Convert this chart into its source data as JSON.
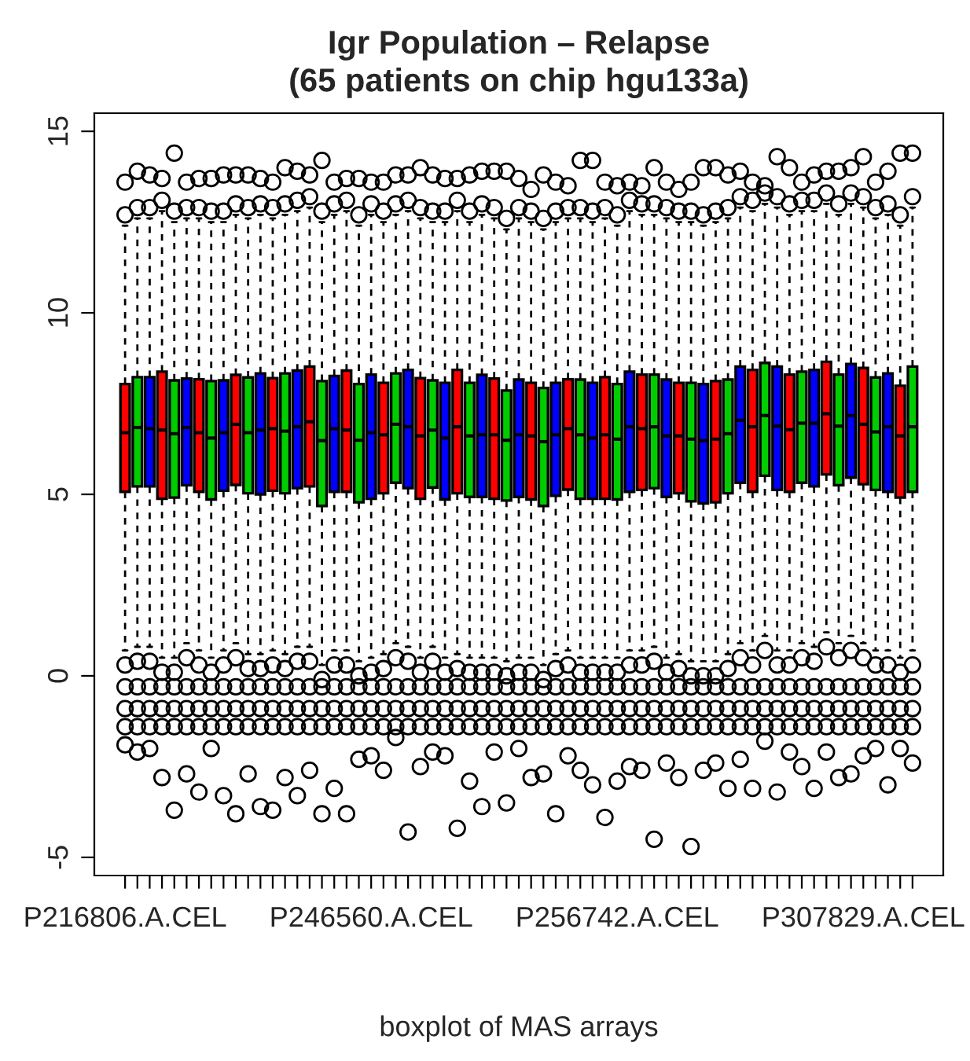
{
  "chart_data": {
    "type": "box",
    "title": "Igr Population – Relapse\n(65 patients on chip hgu133a)",
    "xlabel": "boxplot of MAS arrays",
    "categories": [
      "P216806.A.CEL",
      null,
      null,
      null,
      null,
      null,
      null,
      null,
      null,
      null,
      null,
      null,
      null,
      null,
      null,
      null,
      null,
      null,
      null,
      null,
      "P246560.A.CEL",
      null,
      null,
      null,
      null,
      null,
      null,
      null,
      null,
      null,
      null,
      null,
      null,
      null,
      null,
      null,
      null,
      null,
      null,
      null,
      "P256742.A.CEL",
      null,
      null,
      null,
      null,
      null,
      null,
      null,
      null,
      null,
      null,
      null,
      null,
      null,
      null,
      null,
      null,
      null,
      null,
      null,
      "P307829.A.CEL",
      null,
      null,
      null,
      null
    ],
    "colors": [
      "#ff0000",
      "#00cd00",
      "#0000ff",
      "#ff0000",
      "#00cd00",
      "#0000ff",
      "#ff0000",
      "#00cd00",
      "#0000ff",
      "#ff0000",
      "#00cd00",
      "#0000ff",
      "#ff0000",
      "#00cd00",
      "#0000ff",
      "#ff0000",
      "#00cd00",
      "#0000ff",
      "#ff0000",
      "#00cd00",
      "#0000ff",
      "#ff0000",
      "#00cd00",
      "#0000ff",
      "#ff0000",
      "#00cd00",
      "#0000ff",
      "#ff0000",
      "#00cd00",
      "#0000ff",
      "#ff0000",
      "#00cd00",
      "#0000ff",
      "#ff0000",
      "#00cd00",
      "#0000ff",
      "#ff0000",
      "#00cd00",
      "#0000ff",
      "#ff0000",
      "#00cd00",
      "#0000ff",
      "#ff0000",
      "#00cd00",
      "#0000ff",
      "#ff0000",
      "#00cd00",
      "#0000ff",
      "#ff0000",
      "#00cd00",
      "#0000ff",
      "#ff0000",
      "#00cd00",
      "#0000ff",
      "#ff0000",
      "#00cd00",
      "#0000ff",
      "#ff0000",
      "#00cd00",
      "#0000ff",
      "#ff0000",
      "#00cd00",
      "#0000ff",
      "#ff0000",
      "#00cd00"
    ],
    "boxes": [
      {
        "low": 0.7,
        "q1": 5.07,
        "median": 6.7,
        "q3": 8.04,
        "high": 12.4,
        "outliers": [
          12.7,
          13.6,
          0.3,
          -0.3,
          -0.9,
          -1.4,
          -1.9
        ]
      },
      {
        "low": 0.8,
        "q1": 5.22,
        "median": 6.84,
        "q3": 8.23,
        "high": 12.6,
        "outliers": [
          12.9,
          13.9,
          0.4,
          -0.3,
          -0.9,
          -1.4,
          -2.1
        ]
      },
      {
        "low": 0.8,
        "q1": 5.22,
        "median": 6.81,
        "q3": 8.23,
        "high": 12.6,
        "outliers": [
          12.9,
          13.8,
          0.4,
          -0.3,
          -0.9,
          -1.4,
          -2.0
        ]
      },
      {
        "low": 0.5,
        "q1": 4.88,
        "median": 6.77,
        "q3": 8.38,
        "high": 12.8,
        "outliers": [
          13.1,
          13.7,
          0.1,
          -0.3,
          -0.9,
          -1.4,
          -2.8
        ]
      },
      {
        "low": 0.5,
        "q1": 4.91,
        "median": 6.67,
        "q3": 8.14,
        "high": 12.5,
        "outliers": [
          12.8,
          14.4,
          0.1,
          -0.3,
          -0.9,
          -1.4,
          -3.7
        ]
      },
      {
        "low": 0.9,
        "q1": 5.25,
        "median": 6.84,
        "q3": 8.19,
        "high": 12.6,
        "outliers": [
          12.9,
          13.6,
          0.5,
          -0.3,
          -0.9,
          -1.4,
          -2.7
        ]
      },
      {
        "low": 0.7,
        "q1": 5.07,
        "median": 6.7,
        "q3": 8.17,
        "high": 12.6,
        "outliers": [
          12.9,
          13.7,
          0.3,
          -0.3,
          -0.9,
          -1.4,
          -3.2
        ]
      },
      {
        "low": 0.5,
        "q1": 4.86,
        "median": 6.55,
        "q3": 8.12,
        "high": 12.5,
        "outliers": [
          12.8,
          13.7,
          0.1,
          -0.3,
          -0.9,
          -1.4,
          -2.0
        ]
      },
      {
        "low": 0.7,
        "q1": 5.1,
        "median": 6.7,
        "q3": 8.14,
        "high": 12.5,
        "outliers": [
          12.8,
          13.8,
          0.3,
          -0.3,
          -0.9,
          -1.4,
          -3.3
        ]
      },
      {
        "low": 0.9,
        "q1": 5.26,
        "median": 6.93,
        "q3": 8.29,
        "high": 12.7,
        "outliers": [
          13.0,
          13.8,
          0.5,
          -0.3,
          -0.9,
          -1.4,
          -3.8
        ]
      },
      {
        "low": 0.6,
        "q1": 5.03,
        "median": 6.7,
        "q3": 8.22,
        "high": 12.6,
        "outliers": [
          12.9,
          13.8,
          0.2,
          -0.3,
          -0.9,
          -1.4,
          -2.7
        ]
      },
      {
        "low": 0.6,
        "q1": 5.0,
        "median": 6.77,
        "q3": 8.33,
        "high": 12.7,
        "outliers": [
          13.0,
          13.7,
          0.2,
          -0.3,
          -0.9,
          -1.4,
          -3.6
        ]
      },
      {
        "low": 0.7,
        "q1": 5.1,
        "median": 6.81,
        "q3": 8.2,
        "high": 12.6,
        "outliers": [
          12.9,
          13.6,
          0.3,
          -0.3,
          -0.9,
          -1.4,
          -3.7
        ]
      },
      {
        "low": 0.6,
        "q1": 5.03,
        "median": 6.74,
        "q3": 8.33,
        "high": 12.7,
        "outliers": [
          13.0,
          14.0,
          0.2,
          -0.3,
          -0.9,
          -1.4,
          -2.8
        ]
      },
      {
        "low": 0.8,
        "q1": 5.17,
        "median": 6.86,
        "q3": 8.41,
        "high": 12.8,
        "outliers": [
          13.1,
          13.9,
          0.4,
          -0.3,
          -0.9,
          -1.4,
          -3.3
        ]
      },
      {
        "low": 0.8,
        "q1": 5.22,
        "median": 7.0,
        "q3": 8.52,
        "high": 12.9,
        "outliers": [
          13.2,
          13.8,
          0.4,
          -0.3,
          -0.9,
          -1.4,
          -2.6
        ]
      },
      {
        "low": 0.3,
        "q1": 4.68,
        "median": 6.48,
        "q3": 8.12,
        "high": 12.5,
        "outliers": [
          12.8,
          14.2,
          -0.1,
          -0.3,
          -0.9,
          -1.4,
          -3.8
        ]
      },
      {
        "low": 0.7,
        "q1": 5.07,
        "median": 6.81,
        "q3": 8.26,
        "high": 12.7,
        "outliers": [
          13.0,
          13.6,
          0.3,
          -0.3,
          -0.9,
          -1.4,
          -3.1
        ]
      },
      {
        "low": 0.7,
        "q1": 5.07,
        "median": 6.77,
        "q3": 8.41,
        "high": 12.8,
        "outliers": [
          13.1,
          13.7,
          0.3,
          -0.3,
          -0.9,
          -1.4,
          -3.8
        ]
      },
      {
        "low": 0.4,
        "q1": 4.78,
        "median": 6.49,
        "q3": 8.04,
        "high": 12.4,
        "outliers": [
          12.7,
          13.7,
          0.0,
          -0.3,
          -0.9,
          -1.4,
          -2.3
        ]
      },
      {
        "low": 0.5,
        "q1": 4.88,
        "median": 6.7,
        "q3": 8.3,
        "high": 12.7,
        "outliers": [
          13.0,
          13.6,
          0.1,
          -0.3,
          -0.9,
          -1.4,
          -2.2
        ]
      },
      {
        "low": 0.6,
        "q1": 5.03,
        "median": 6.64,
        "q3": 8.07,
        "high": 12.5,
        "outliers": [
          12.8,
          13.6,
          0.2,
          -0.3,
          -0.9,
          -1.4,
          -2.6
        ]
      },
      {
        "low": 0.9,
        "q1": 5.32,
        "median": 6.93,
        "q3": 8.33,
        "high": 12.7,
        "outliers": [
          13.0,
          13.8,
          0.5,
          -0.3,
          -0.9,
          -1.4,
          -1.7
        ]
      },
      {
        "low": 0.8,
        "q1": 5.17,
        "median": 6.86,
        "q3": 8.43,
        "high": 12.8,
        "outliers": [
          13.1,
          13.8,
          0.4,
          -0.3,
          -0.9,
          -1.4,
          -4.3
        ]
      },
      {
        "low": 0.5,
        "q1": 4.88,
        "median": 6.61,
        "q3": 8.2,
        "high": 12.6,
        "outliers": [
          12.9,
          14.0,
          0.1,
          -0.3,
          -0.9,
          -1.4,
          -2.5
        ]
      },
      {
        "low": 0.8,
        "q1": 5.19,
        "median": 6.77,
        "q3": 8.14,
        "high": 12.5,
        "outliers": [
          12.8,
          13.8,
          0.4,
          -0.3,
          -0.9,
          -1.4,
          -2.1
        ]
      },
      {
        "low": 0.5,
        "q1": 4.86,
        "median": 6.55,
        "q3": 8.07,
        "high": 12.5,
        "outliers": [
          12.8,
          13.7,
          0.1,
          -0.3,
          -0.9,
          -1.4,
          -2.2
        ]
      },
      {
        "low": 0.6,
        "q1": 5.03,
        "median": 6.86,
        "q3": 8.43,
        "high": 12.8,
        "outliers": [
          13.1,
          13.7,
          0.2,
          -0.3,
          -0.9,
          -1.4,
          -4.2
        ]
      },
      {
        "low": 0.5,
        "q1": 4.93,
        "median": 6.61,
        "q3": 8.07,
        "high": 12.5,
        "outliers": [
          12.8,
          13.8,
          0.1,
          -0.3,
          -0.9,
          -1.4,
          -2.9
        ]
      },
      {
        "low": 0.5,
        "q1": 4.93,
        "median": 6.64,
        "q3": 8.29,
        "high": 12.7,
        "outliers": [
          13.0,
          13.9,
          0.1,
          -0.3,
          -0.9,
          -1.4,
          -3.6
        ]
      },
      {
        "low": 0.5,
        "q1": 4.88,
        "median": 6.64,
        "q3": 8.19,
        "high": 12.6,
        "outliers": [
          12.9,
          13.9,
          0.1,
          -0.3,
          -0.9,
          -1.4,
          -2.1
        ]
      },
      {
        "low": 0.4,
        "q1": 4.83,
        "median": 6.49,
        "q3": 7.86,
        "high": 12.3,
        "outliers": [
          12.6,
          13.9,
          0.0,
          -0.3,
          -0.9,
          -1.4,
          -3.5
        ]
      },
      {
        "low": 0.5,
        "q1": 4.93,
        "median": 6.64,
        "q3": 8.16,
        "high": 12.6,
        "outliers": [
          12.9,
          13.7,
          0.1,
          -0.3,
          -0.9,
          -1.4,
          -2.0
        ]
      },
      {
        "low": 0.5,
        "q1": 4.86,
        "median": 6.61,
        "q3": 8.07,
        "high": 12.5,
        "outliers": [
          12.8,
          13.4,
          0.1,
          -0.3,
          -0.9,
          -1.4,
          -2.8
        ]
      },
      {
        "low": 0.3,
        "q1": 4.68,
        "median": 6.45,
        "q3": 7.93,
        "high": 12.3,
        "outliers": [
          12.6,
          13.8,
          -0.1,
          -0.3,
          -0.9,
          -1.4,
          -2.7
        ]
      },
      {
        "low": 0.6,
        "q1": 4.96,
        "median": 6.64,
        "q3": 8.07,
        "high": 12.5,
        "outliers": [
          12.8,
          13.6,
          0.2,
          -0.3,
          -0.9,
          -1.4,
          -3.8
        ]
      },
      {
        "low": 0.7,
        "q1": 5.13,
        "median": 6.81,
        "q3": 8.17,
        "high": 12.6,
        "outliers": [
          12.9,
          13.5,
          0.3,
          -0.3,
          -0.9,
          -1.4,
          -2.2
        ]
      },
      {
        "low": 0.5,
        "q1": 4.88,
        "median": 6.64,
        "q3": 8.16,
        "high": 12.6,
        "outliers": [
          12.9,
          14.2,
          0.1,
          -0.3,
          -0.9,
          -1.4,
          -2.6
        ]
      },
      {
        "low": 0.5,
        "q1": 4.88,
        "median": 6.55,
        "q3": 8.07,
        "high": 12.5,
        "outliers": [
          12.8,
          14.2,
          0.1,
          -0.3,
          -0.9,
          -1.4,
          -3.0
        ]
      },
      {
        "low": 0.5,
        "q1": 4.88,
        "median": 6.64,
        "q3": 8.23,
        "high": 12.6,
        "outliers": [
          12.9,
          13.6,
          0.1,
          -0.3,
          -0.9,
          -1.4,
          -3.9
        ]
      },
      {
        "low": 0.5,
        "q1": 4.86,
        "median": 6.52,
        "q3": 8.04,
        "high": 12.4,
        "outliers": [
          12.7,
          13.5,
          0.1,
          -0.3,
          -0.9,
          -1.4,
          -2.9
        ]
      },
      {
        "low": 0.7,
        "q1": 5.07,
        "median": 6.86,
        "q3": 8.38,
        "high": 12.8,
        "outliers": [
          13.1,
          13.6,
          0.3,
          -0.3,
          -0.9,
          -1.4,
          -2.5
        ]
      },
      {
        "low": 0.7,
        "q1": 5.12,
        "median": 6.81,
        "q3": 8.3,
        "high": 12.7,
        "outliers": [
          13.0,
          13.5,
          0.3,
          -0.3,
          -0.9,
          -1.4,
          -2.6
        ]
      },
      {
        "low": 0.8,
        "q1": 5.17,
        "median": 6.86,
        "q3": 8.3,
        "high": 12.7,
        "outliers": [
          13.0,
          14.0,
          0.4,
          -0.3,
          -0.9,
          -1.4,
          -4.5
        ]
      },
      {
        "low": 0.5,
        "q1": 4.93,
        "median": 6.61,
        "q3": 8.16,
        "high": 12.6,
        "outliers": [
          12.9,
          13.6,
          0.1,
          -0.3,
          -0.9,
          -1.4,
          -2.4
        ]
      },
      {
        "low": 0.6,
        "q1": 5.03,
        "median": 6.61,
        "q3": 8.07,
        "high": 12.5,
        "outliers": [
          12.8,
          13.4,
          0.2,
          -0.3,
          -0.9,
          -1.4,
          -2.8
        ]
      },
      {
        "low": 0.4,
        "q1": 4.81,
        "median": 6.52,
        "q3": 8.07,
        "high": 12.5,
        "outliers": [
          12.8,
          13.6,
          0.0,
          -0.3,
          -0.9,
          -1.4,
          -4.7
        ]
      },
      {
        "low": 0.4,
        "q1": 4.75,
        "median": 6.48,
        "q3": 8.04,
        "high": 12.4,
        "outliers": [
          12.7,
          14.0,
          0.0,
          -0.3,
          -0.9,
          -1.4,
          -2.6
        ]
      },
      {
        "low": 0.4,
        "q1": 4.78,
        "median": 6.52,
        "q3": 8.12,
        "high": 12.5,
        "outliers": [
          12.8,
          14.0,
          0.0,
          -0.3,
          -0.9,
          -1.4,
          -2.4
        ]
      },
      {
        "low": 0.6,
        "q1": 5.03,
        "median": 6.67,
        "q3": 8.16,
        "high": 12.6,
        "outliers": [
          12.9,
          13.8,
          0.2,
          -0.3,
          -0.9,
          -1.4,
          -3.1
        ]
      },
      {
        "low": 0.9,
        "q1": 5.32,
        "median": 7.04,
        "q3": 8.52,
        "high": 12.9,
        "outliers": [
          13.2,
          13.9,
          0.5,
          -0.3,
          -0.9,
          -1.4,
          -2.3
        ]
      },
      {
        "low": 0.7,
        "q1": 5.07,
        "median": 6.86,
        "q3": 8.43,
        "high": 12.8,
        "outliers": [
          13.1,
          13.6,
          0.3,
          -0.3,
          -0.9,
          -1.4,
          -3.1
        ]
      },
      {
        "low": 1.1,
        "q1": 5.51,
        "median": 7.17,
        "q3": 8.62,
        "high": 13.0,
        "outliers": [
          13.3,
          13.5,
          0.7,
          -0.3,
          -0.9,
          -1.4,
          -1.8
        ]
      },
      {
        "low": 0.7,
        "q1": 5.12,
        "median": 6.88,
        "q3": 8.52,
        "high": 12.9,
        "outliers": [
          13.2,
          14.3,
          0.3,
          -0.3,
          -0.9,
          -1.4,
          -3.2
        ]
      },
      {
        "low": 0.7,
        "q1": 5.07,
        "median": 6.78,
        "q3": 8.3,
        "high": 12.7,
        "outliers": [
          13.0,
          14.0,
          0.3,
          -0.3,
          -0.9,
          -1.4,
          -2.1
        ]
      },
      {
        "low": 0.9,
        "q1": 5.32,
        "median": 6.96,
        "q3": 8.38,
        "high": 12.8,
        "outliers": [
          13.1,
          13.6,
          0.5,
          -0.3,
          -0.9,
          -1.4,
          -2.5
        ]
      },
      {
        "low": 0.8,
        "q1": 5.22,
        "median": 6.96,
        "q3": 8.43,
        "high": 12.8,
        "outliers": [
          13.1,
          13.8,
          0.4,
          -0.3,
          -0.9,
          -1.4,
          -3.1
        ]
      },
      {
        "low": 1.2,
        "q1": 5.55,
        "median": 7.22,
        "q3": 8.65,
        "high": 13.0,
        "outliers": [
          13.3,
          13.9,
          0.8,
          -0.3,
          -0.9,
          -1.4,
          -2.1
        ]
      },
      {
        "low": 0.9,
        "q1": 5.25,
        "median": 6.88,
        "q3": 8.3,
        "high": 12.7,
        "outliers": [
          13.0,
          13.9,
          0.5,
          -0.3,
          -0.9,
          -1.4,
          -2.8
        ]
      },
      {
        "low": 1.1,
        "q1": 5.46,
        "median": 7.17,
        "q3": 8.59,
        "high": 13.0,
        "outliers": [
          13.3,
          14.0,
          0.7,
          -0.3,
          -0.9,
          -1.4,
          -2.7
        ]
      },
      {
        "low": 0.9,
        "q1": 5.28,
        "median": 6.93,
        "q3": 8.48,
        "high": 12.9,
        "outliers": [
          13.2,
          14.3,
          0.5,
          -0.3,
          -0.9,
          -1.4,
          -2.2
        ]
      },
      {
        "low": 0.7,
        "q1": 5.12,
        "median": 6.72,
        "q3": 8.22,
        "high": 12.6,
        "outliers": [
          12.9,
          13.6,
          0.3,
          -0.3,
          -0.9,
          -1.4,
          -2.0
        ]
      },
      {
        "low": 0.7,
        "q1": 5.07,
        "median": 6.86,
        "q3": 8.33,
        "high": 12.7,
        "outliers": [
          13.0,
          13.9,
          0.3,
          -0.3,
          -0.9,
          -1.4,
          -3.0
        ]
      },
      {
        "low": 0.5,
        "q1": 4.91,
        "median": 6.61,
        "q3": 7.99,
        "high": 12.4,
        "outliers": [
          12.7,
          14.4,
          0.1,
          -0.3,
          -0.9,
          -1.4,
          -2.0
        ]
      },
      {
        "low": 0.7,
        "q1": 5.07,
        "median": 6.86,
        "q3": 8.52,
        "high": 12.9,
        "outliers": [
          13.2,
          14.4,
          0.3,
          -0.3,
          -0.9,
          -1.4,
          -2.4
        ]
      }
    ],
    "ylim": [
      -5.5,
      15.5
    ],
    "yticks": [
      -5,
      0,
      5,
      10,
      15
    ],
    "grid": false,
    "legend": false
  }
}
